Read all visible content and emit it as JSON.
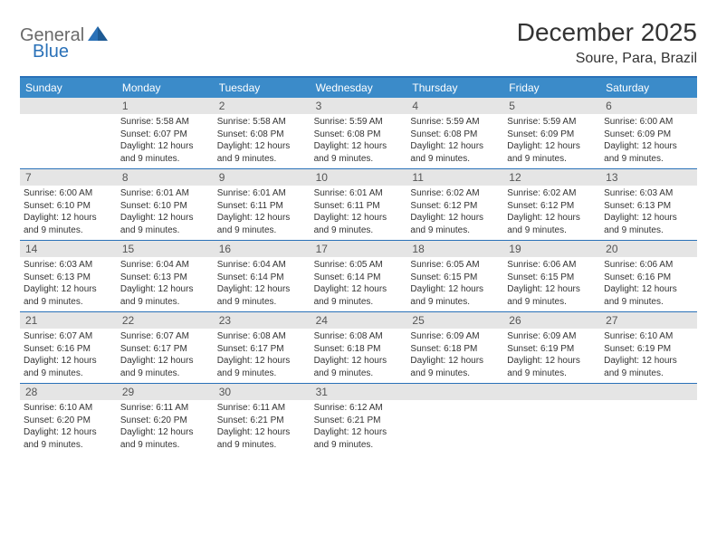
{
  "brand": {
    "part1": "General",
    "part2": "Blue"
  },
  "title": "December 2025",
  "location": "Soure, Para, Brazil",
  "colors": {
    "header_bg": "#3b8bc9",
    "border": "#2a71b8",
    "daynum_bg": "#e5e5e5",
    "text": "#333333",
    "logo_gray": "#6a6a6a",
    "logo_blue": "#2a71b8"
  },
  "day_headers": [
    "Sunday",
    "Monday",
    "Tuesday",
    "Wednesday",
    "Thursday",
    "Friday",
    "Saturday"
  ],
  "weeks": [
    [
      {
        "num": "",
        "sunrise": "",
        "sunset": "",
        "daylight": ""
      },
      {
        "num": "1",
        "sunrise": "Sunrise: 5:58 AM",
        "sunset": "Sunset: 6:07 PM",
        "daylight": "Daylight: 12 hours and 9 minutes."
      },
      {
        "num": "2",
        "sunrise": "Sunrise: 5:58 AM",
        "sunset": "Sunset: 6:08 PM",
        "daylight": "Daylight: 12 hours and 9 minutes."
      },
      {
        "num": "3",
        "sunrise": "Sunrise: 5:59 AM",
        "sunset": "Sunset: 6:08 PM",
        "daylight": "Daylight: 12 hours and 9 minutes."
      },
      {
        "num": "4",
        "sunrise": "Sunrise: 5:59 AM",
        "sunset": "Sunset: 6:08 PM",
        "daylight": "Daylight: 12 hours and 9 minutes."
      },
      {
        "num": "5",
        "sunrise": "Sunrise: 5:59 AM",
        "sunset": "Sunset: 6:09 PM",
        "daylight": "Daylight: 12 hours and 9 minutes."
      },
      {
        "num": "6",
        "sunrise": "Sunrise: 6:00 AM",
        "sunset": "Sunset: 6:09 PM",
        "daylight": "Daylight: 12 hours and 9 minutes."
      }
    ],
    [
      {
        "num": "7",
        "sunrise": "Sunrise: 6:00 AM",
        "sunset": "Sunset: 6:10 PM",
        "daylight": "Daylight: 12 hours and 9 minutes."
      },
      {
        "num": "8",
        "sunrise": "Sunrise: 6:01 AM",
        "sunset": "Sunset: 6:10 PM",
        "daylight": "Daylight: 12 hours and 9 minutes."
      },
      {
        "num": "9",
        "sunrise": "Sunrise: 6:01 AM",
        "sunset": "Sunset: 6:11 PM",
        "daylight": "Daylight: 12 hours and 9 minutes."
      },
      {
        "num": "10",
        "sunrise": "Sunrise: 6:01 AM",
        "sunset": "Sunset: 6:11 PM",
        "daylight": "Daylight: 12 hours and 9 minutes."
      },
      {
        "num": "11",
        "sunrise": "Sunrise: 6:02 AM",
        "sunset": "Sunset: 6:12 PM",
        "daylight": "Daylight: 12 hours and 9 minutes."
      },
      {
        "num": "12",
        "sunrise": "Sunrise: 6:02 AM",
        "sunset": "Sunset: 6:12 PM",
        "daylight": "Daylight: 12 hours and 9 minutes."
      },
      {
        "num": "13",
        "sunrise": "Sunrise: 6:03 AM",
        "sunset": "Sunset: 6:13 PM",
        "daylight": "Daylight: 12 hours and 9 minutes."
      }
    ],
    [
      {
        "num": "14",
        "sunrise": "Sunrise: 6:03 AM",
        "sunset": "Sunset: 6:13 PM",
        "daylight": "Daylight: 12 hours and 9 minutes."
      },
      {
        "num": "15",
        "sunrise": "Sunrise: 6:04 AM",
        "sunset": "Sunset: 6:13 PM",
        "daylight": "Daylight: 12 hours and 9 minutes."
      },
      {
        "num": "16",
        "sunrise": "Sunrise: 6:04 AM",
        "sunset": "Sunset: 6:14 PM",
        "daylight": "Daylight: 12 hours and 9 minutes."
      },
      {
        "num": "17",
        "sunrise": "Sunrise: 6:05 AM",
        "sunset": "Sunset: 6:14 PM",
        "daylight": "Daylight: 12 hours and 9 minutes."
      },
      {
        "num": "18",
        "sunrise": "Sunrise: 6:05 AM",
        "sunset": "Sunset: 6:15 PM",
        "daylight": "Daylight: 12 hours and 9 minutes."
      },
      {
        "num": "19",
        "sunrise": "Sunrise: 6:06 AM",
        "sunset": "Sunset: 6:15 PM",
        "daylight": "Daylight: 12 hours and 9 minutes."
      },
      {
        "num": "20",
        "sunrise": "Sunrise: 6:06 AM",
        "sunset": "Sunset: 6:16 PM",
        "daylight": "Daylight: 12 hours and 9 minutes."
      }
    ],
    [
      {
        "num": "21",
        "sunrise": "Sunrise: 6:07 AM",
        "sunset": "Sunset: 6:16 PM",
        "daylight": "Daylight: 12 hours and 9 minutes."
      },
      {
        "num": "22",
        "sunrise": "Sunrise: 6:07 AM",
        "sunset": "Sunset: 6:17 PM",
        "daylight": "Daylight: 12 hours and 9 minutes."
      },
      {
        "num": "23",
        "sunrise": "Sunrise: 6:08 AM",
        "sunset": "Sunset: 6:17 PM",
        "daylight": "Daylight: 12 hours and 9 minutes."
      },
      {
        "num": "24",
        "sunrise": "Sunrise: 6:08 AM",
        "sunset": "Sunset: 6:18 PM",
        "daylight": "Daylight: 12 hours and 9 minutes."
      },
      {
        "num": "25",
        "sunrise": "Sunrise: 6:09 AM",
        "sunset": "Sunset: 6:18 PM",
        "daylight": "Daylight: 12 hours and 9 minutes."
      },
      {
        "num": "26",
        "sunrise": "Sunrise: 6:09 AM",
        "sunset": "Sunset: 6:19 PM",
        "daylight": "Daylight: 12 hours and 9 minutes."
      },
      {
        "num": "27",
        "sunrise": "Sunrise: 6:10 AM",
        "sunset": "Sunset: 6:19 PM",
        "daylight": "Daylight: 12 hours and 9 minutes."
      }
    ],
    [
      {
        "num": "28",
        "sunrise": "Sunrise: 6:10 AM",
        "sunset": "Sunset: 6:20 PM",
        "daylight": "Daylight: 12 hours and 9 minutes."
      },
      {
        "num": "29",
        "sunrise": "Sunrise: 6:11 AM",
        "sunset": "Sunset: 6:20 PM",
        "daylight": "Daylight: 12 hours and 9 minutes."
      },
      {
        "num": "30",
        "sunrise": "Sunrise: 6:11 AM",
        "sunset": "Sunset: 6:21 PM",
        "daylight": "Daylight: 12 hours and 9 minutes."
      },
      {
        "num": "31",
        "sunrise": "Sunrise: 6:12 AM",
        "sunset": "Sunset: 6:21 PM",
        "daylight": "Daylight: 12 hours and 9 minutes."
      },
      {
        "num": "",
        "sunrise": "",
        "sunset": "",
        "daylight": ""
      },
      {
        "num": "",
        "sunrise": "",
        "sunset": "",
        "daylight": ""
      },
      {
        "num": "",
        "sunrise": "",
        "sunset": "",
        "daylight": ""
      }
    ]
  ]
}
